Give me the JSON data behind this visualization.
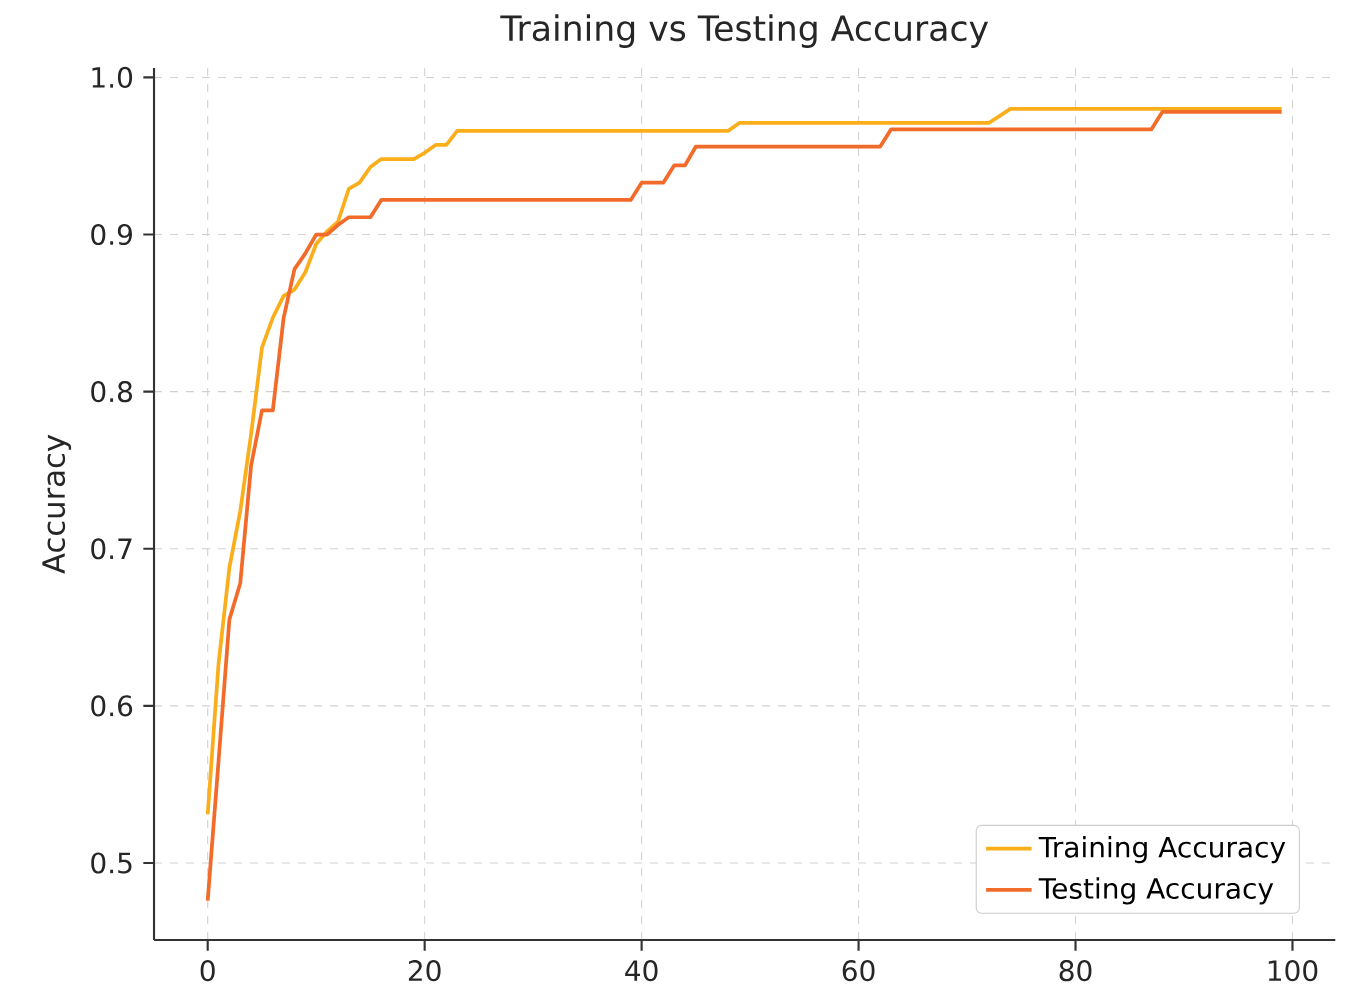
{
  "chart_data": {
    "type": "line",
    "title": "Training vs Testing Accuracy",
    "ylabel": "Accuracy",
    "xlim": [
      -4.95,
      103.95
    ],
    "ylim": [
      0.451,
      1.006
    ],
    "xticks": [
      0,
      20,
      40,
      60,
      80,
      100
    ],
    "yticks": [
      {
        "value": 0.5,
        "label": "0.5"
      },
      {
        "value": 0.6,
        "label": "0.6"
      },
      {
        "value": 0.7,
        "label": "0.7"
      },
      {
        "value": 0.8,
        "label": "0.8"
      },
      {
        "value": 0.9,
        "label": "0.9"
      },
      {
        "value": 1.0,
        "label": "1.0"
      }
    ],
    "grid": true,
    "legend": "bottom right",
    "line_style": "solid",
    "series": [
      {
        "name": "Training Accuracy",
        "color": "#fbae1c",
        "x": [
          0,
          1,
          2,
          3,
          4,
          5,
          6,
          7,
          8,
          9,
          10,
          11,
          12,
          13,
          14,
          15,
          16,
          19,
          20,
          21,
          22,
          23,
          48,
          49,
          72,
          74,
          99
        ],
        "values": [
          0.531,
          0.627,
          0.688,
          0.724,
          0.773,
          0.828,
          0.847,
          0.861,
          0.865,
          0.876,
          0.894,
          0.902,
          0.908,
          0.929,
          0.933,
          0.943,
          0.948,
          0.948,
          0.952,
          0.957,
          0.957,
          0.966,
          0.966,
          0.971,
          0.971,
          0.98,
          0.98
        ]
      },
      {
        "name": "Testing Accuracy",
        "color": "#f26b2a",
        "x": [
          0,
          1,
          2,
          3,
          4,
          5,
          6,
          7,
          8,
          9,
          10,
          11,
          12,
          13,
          15,
          16,
          39,
          40,
          42,
          43,
          44,
          45,
          62,
          63,
          87,
          88,
          99
        ],
        "values": [
          0.476,
          0.565,
          0.655,
          0.678,
          0.753,
          0.788,
          0.788,
          0.847,
          0.878,
          0.888,
          0.9,
          0.9,
          0.906,
          0.911,
          0.911,
          0.922,
          0.922,
          0.933,
          0.933,
          0.944,
          0.944,
          0.956,
          0.956,
          0.967,
          0.967,
          0.978,
          0.978
        ]
      }
    ]
  }
}
